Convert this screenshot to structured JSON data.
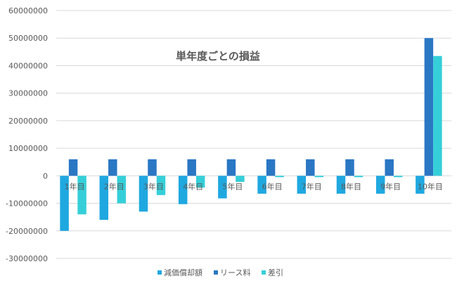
{
  "chart_data": {
    "type": "bar",
    "title": "単年度ごとの損益",
    "categories": [
      "1年目",
      "2年目",
      "3年目",
      "4年目",
      "5年目",
      "6年目",
      "7年目",
      "8年目",
      "9年目",
      "10年目"
    ],
    "ylim": [
      -30000000,
      60000000
    ],
    "yticks": [
      "60000000",
      "50000000",
      "40000000",
      "30000000",
      "20000000",
      "10000000",
      "0",
      "-10000000",
      "-20000000",
      "-30000000"
    ],
    "grid": true,
    "legend_position": "bottom",
    "series": [
      {
        "name": "減価償却額",
        "color": "#1fa8e0",
        "values": [
          -20000000,
          -16000000,
          -13000000,
          -10300000,
          -8200000,
          -6500000,
          -6500000,
          -6500000,
          -6500000,
          -6500000
        ]
      },
      {
        "name": "リース料",
        "color": "#2a77c4",
        "values": [
          6000000,
          6000000,
          6000000,
          6000000,
          6000000,
          6000000,
          6000000,
          6000000,
          6000000,
          50000000
        ]
      },
      {
        "name": "差引",
        "color": "#35cfd9",
        "values": [
          -14000000,
          -10000000,
          -7000000,
          -4300000,
          -2200000,
          -500000,
          -500000,
          -500000,
          -500000,
          43500000
        ]
      }
    ]
  }
}
